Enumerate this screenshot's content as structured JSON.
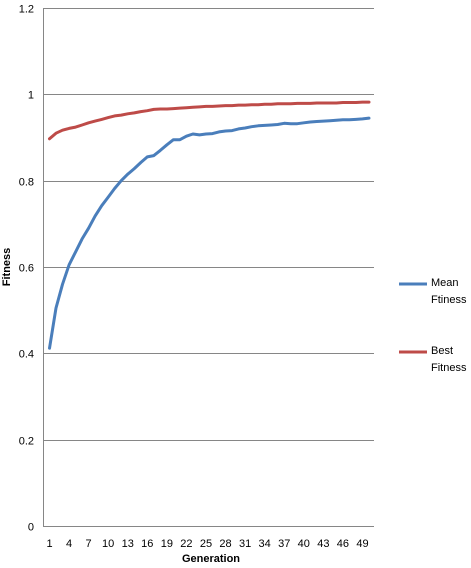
{
  "chart_data": {
    "type": "line",
    "title": "",
    "xlabel": "Generation",
    "ylabel": "Fitness",
    "ylim": [
      0,
      1.2
    ],
    "y_ticks": [
      "0",
      "0.2",
      "0.4",
      "0.6",
      "0.8",
      "1",
      "1.2"
    ],
    "x": [
      1,
      2,
      3,
      4,
      5,
      6,
      7,
      8,
      9,
      10,
      11,
      12,
      13,
      14,
      15,
      16,
      17,
      18,
      19,
      20,
      21,
      22,
      23,
      24,
      25,
      26,
      27,
      28,
      29,
      30,
      31,
      32,
      33,
      34,
      35,
      36,
      37,
      38,
      39,
      40,
      41,
      42,
      43,
      44,
      45,
      46,
      47,
      48,
      49,
      50
    ],
    "x_tick_labels": [
      "1",
      "4",
      "7",
      "10",
      "13",
      "16",
      "19",
      "22",
      "25",
      "28",
      "31",
      "34",
      "37",
      "40",
      "43",
      "46",
      "49"
    ],
    "grid": "horizontal",
    "legend_position": "right",
    "series": [
      {
        "name": "Mean Ftiness",
        "color": "#4a7ebb",
        "values": [
          0.412,
          0.505,
          0.56,
          0.605,
          0.635,
          0.665,
          0.69,
          0.718,
          0.742,
          0.762,
          0.782,
          0.8,
          0.815,
          0.828,
          0.842,
          0.855,
          0.858,
          0.87,
          0.883,
          0.895,
          0.895,
          0.903,
          0.908,
          0.906,
          0.908,
          0.909,
          0.913,
          0.915,
          0.916,
          0.92,
          0.922,
          0.925,
          0.927,
          0.928,
          0.929,
          0.93,
          0.933,
          0.932,
          0.932,
          0.934,
          0.936,
          0.937,
          0.938,
          0.939,
          0.94,
          0.941,
          0.941,
          0.942,
          0.943,
          0.945
        ]
      },
      {
        "name": "Best Fitness",
        "color": "#be4b48",
        "values": [
          0.897,
          0.91,
          0.917,
          0.921,
          0.924,
          0.929,
          0.934,
          0.938,
          0.942,
          0.946,
          0.95,
          0.952,
          0.955,
          0.957,
          0.96,
          0.962,
          0.965,
          0.966,
          0.966,
          0.967,
          0.968,
          0.969,
          0.97,
          0.971,
          0.972,
          0.972,
          0.973,
          0.974,
          0.974,
          0.975,
          0.975,
          0.976,
          0.976,
          0.977,
          0.977,
          0.978,
          0.978,
          0.978,
          0.979,
          0.979,
          0.979,
          0.98,
          0.98,
          0.98,
          0.98,
          0.981,
          0.981,
          0.981,
          0.982,
          0.982
        ]
      }
    ]
  }
}
